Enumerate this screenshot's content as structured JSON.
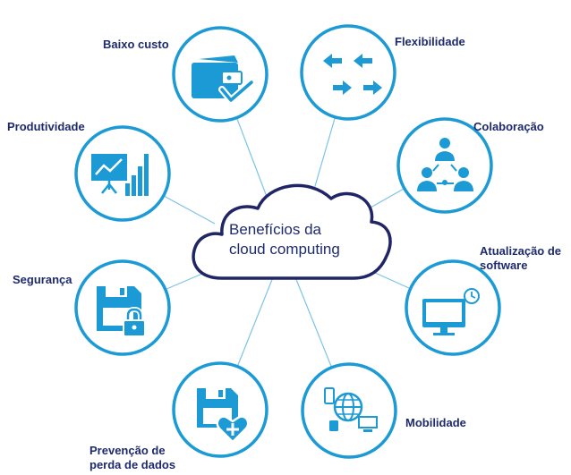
{
  "center": {
    "line1": "Benefícios da",
    "line2": "cloud computing"
  },
  "colors": {
    "circle": "#1b9ad6",
    "icon": "#1b9ad6",
    "cloud_outline": "#1f2566",
    "text": "#1e2a6e",
    "connector": "#7cc3e8"
  },
  "benefits": [
    {
      "label": "Baixo custo",
      "icon": "wallet-check-icon"
    },
    {
      "label": "Flexibilidade",
      "icon": "arrows-icon"
    },
    {
      "label": "Colaboração",
      "icon": "people-network-icon"
    },
    {
      "label_line1": "Atualização de",
      "label_line2": "software",
      "icon": "monitor-clock-icon"
    },
    {
      "label": "Mobilidade",
      "icon": "globe-devices-icon"
    },
    {
      "label_line1": "Prevenção de",
      "label_line2": "perda de dados",
      "icon": "floppy-heart-icon"
    },
    {
      "label": "Segurança",
      "icon": "floppy-lock-icon"
    },
    {
      "label": "Produtividade",
      "icon": "presentation-chart-icon"
    }
  ]
}
